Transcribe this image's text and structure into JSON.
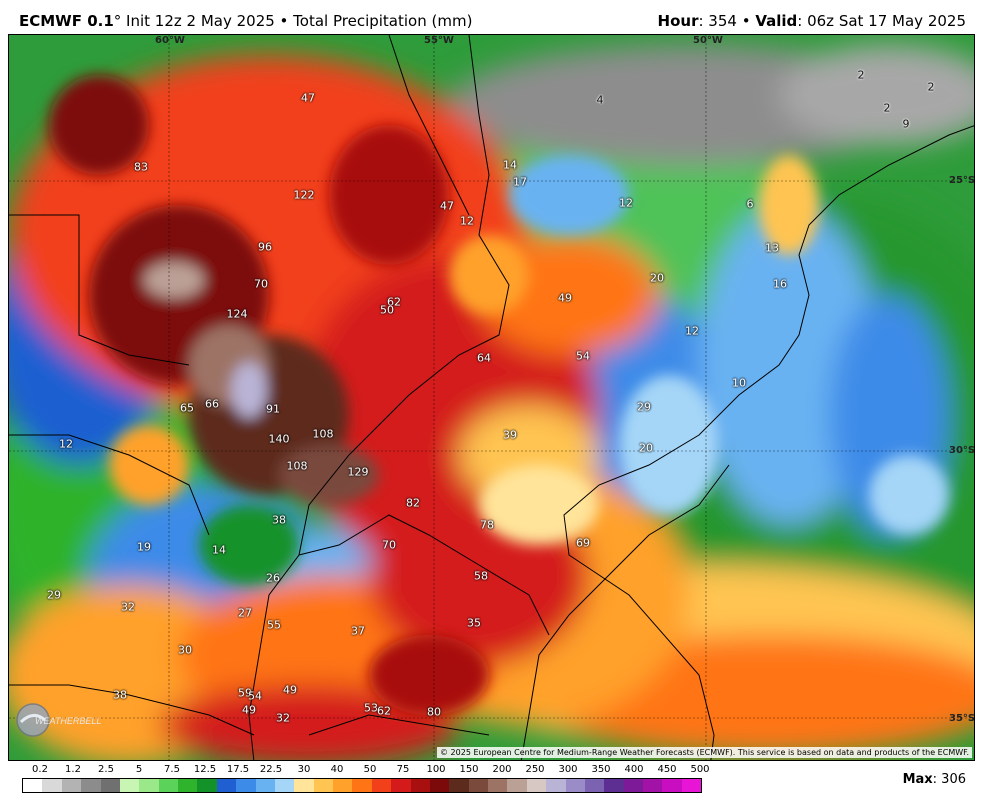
{
  "header": {
    "model": "ECMWF 0.1",
    "degree": "°",
    "init_text": " Init 12z 2 May 2025 • Total Precipitation (mm)",
    "hour_label": "Hour",
    "hour_value": ": 354 • ",
    "valid_label": "Valid",
    "valid_value": ": 06z Sat 17 May 2025"
  },
  "map": {
    "grid_labels": [
      "60°W",
      "55°W",
      "50°W",
      "25°S",
      "30°S",
      "35°S"
    ],
    "values": [
      "47",
      "83",
      "122",
      "47",
      "12",
      "96",
      "70",
      "124",
      "62",
      "50",
      "64",
      "65",
      "66",
      "91",
      "140",
      "108",
      "108",
      "129",
      "12",
      "82",
      "78",
      "38",
      "19",
      "14",
      "70",
      "26",
      "29",
      "32",
      "27",
      "55",
      "37",
      "35",
      "30",
      "38",
      "59",
      "54",
      "49",
      "49",
      "32",
      "53",
      "62",
      "80",
      "14",
      "17",
      "12",
      "6",
      "13",
      "16",
      "20",
      "49",
      "54",
      "12",
      "10",
      "29",
      "39",
      "20",
      "69",
      "58",
      "4",
      "2",
      "2",
      "2",
      "9"
    ],
    "copyright": "© 2025 European Centre for Medium-Range Weather Forecasts (ECMWF). This service is based on data and products of the ECMWF.",
    "logo_text": "WEATHERBELL"
  },
  "legend": {
    "levels": [
      "0.2",
      "1.2",
      "2.5",
      "5",
      "7.5",
      "12.5",
      "17.5",
      "22.5",
      "30",
      "40",
      "50",
      "75",
      "100",
      "150",
      "200",
      "250",
      "300",
      "350",
      "400",
      "450",
      "500"
    ],
    "colors": [
      "#ffffff",
      "#d9d9d9",
      "#b3b3b3",
      "#8c8c8c",
      "#707070",
      "#c8f5b4",
      "#9ae88a",
      "#5bd35a",
      "#2fb22c",
      "#13922a",
      "#1f5fd1",
      "#3c8be8",
      "#69b2f2",
      "#a5d6f7",
      "#ffe49a",
      "#ffc451",
      "#ffa12a",
      "#ff7415",
      "#f2411a",
      "#d41a1a",
      "#a80f0f",
      "#7d0a0a",
      "#5d2a1e",
      "#7a4a3d",
      "#9d7366",
      "#bba096",
      "#d8c8c4",
      "#b9b4d6",
      "#9a8cc6",
      "#7c63b1",
      "#5d2f93",
      "#7d1a97",
      "#a312a6",
      "#c80ec0",
      "#e814d6"
    ],
    "max_label": "Max",
    "max_value": ": 306"
  }
}
